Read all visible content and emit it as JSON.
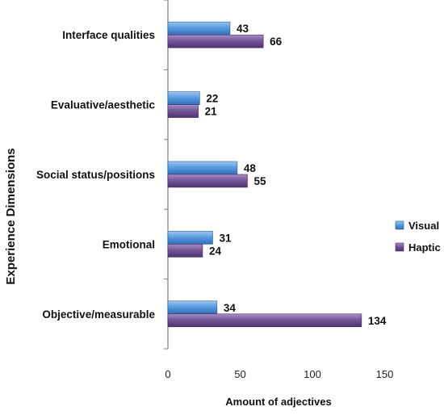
{
  "chart_data": {
    "type": "bar",
    "orientation": "horizontal",
    "categories": [
      "Interface qualities",
      "Evaluative/aesthetic",
      "Social status/positions",
      "Emotional",
      "Objective/measurable"
    ],
    "series": [
      {
        "name": "Visual",
        "values": [
          43,
          22,
          48,
          31,
          34
        ],
        "color": "#4f8fd6"
      },
      {
        "name": "Haptic",
        "values": [
          66,
          21,
          55,
          24,
          134
        ],
        "color": "#6b4a8c"
      }
    ],
    "xlabel": "Amount of adjectives",
    "ylabel": "Experience Dimensions",
    "xlim": [
      0,
      150
    ],
    "xticks": [
      0,
      50,
      100,
      150
    ],
    "grid": false,
    "legend": "right"
  }
}
